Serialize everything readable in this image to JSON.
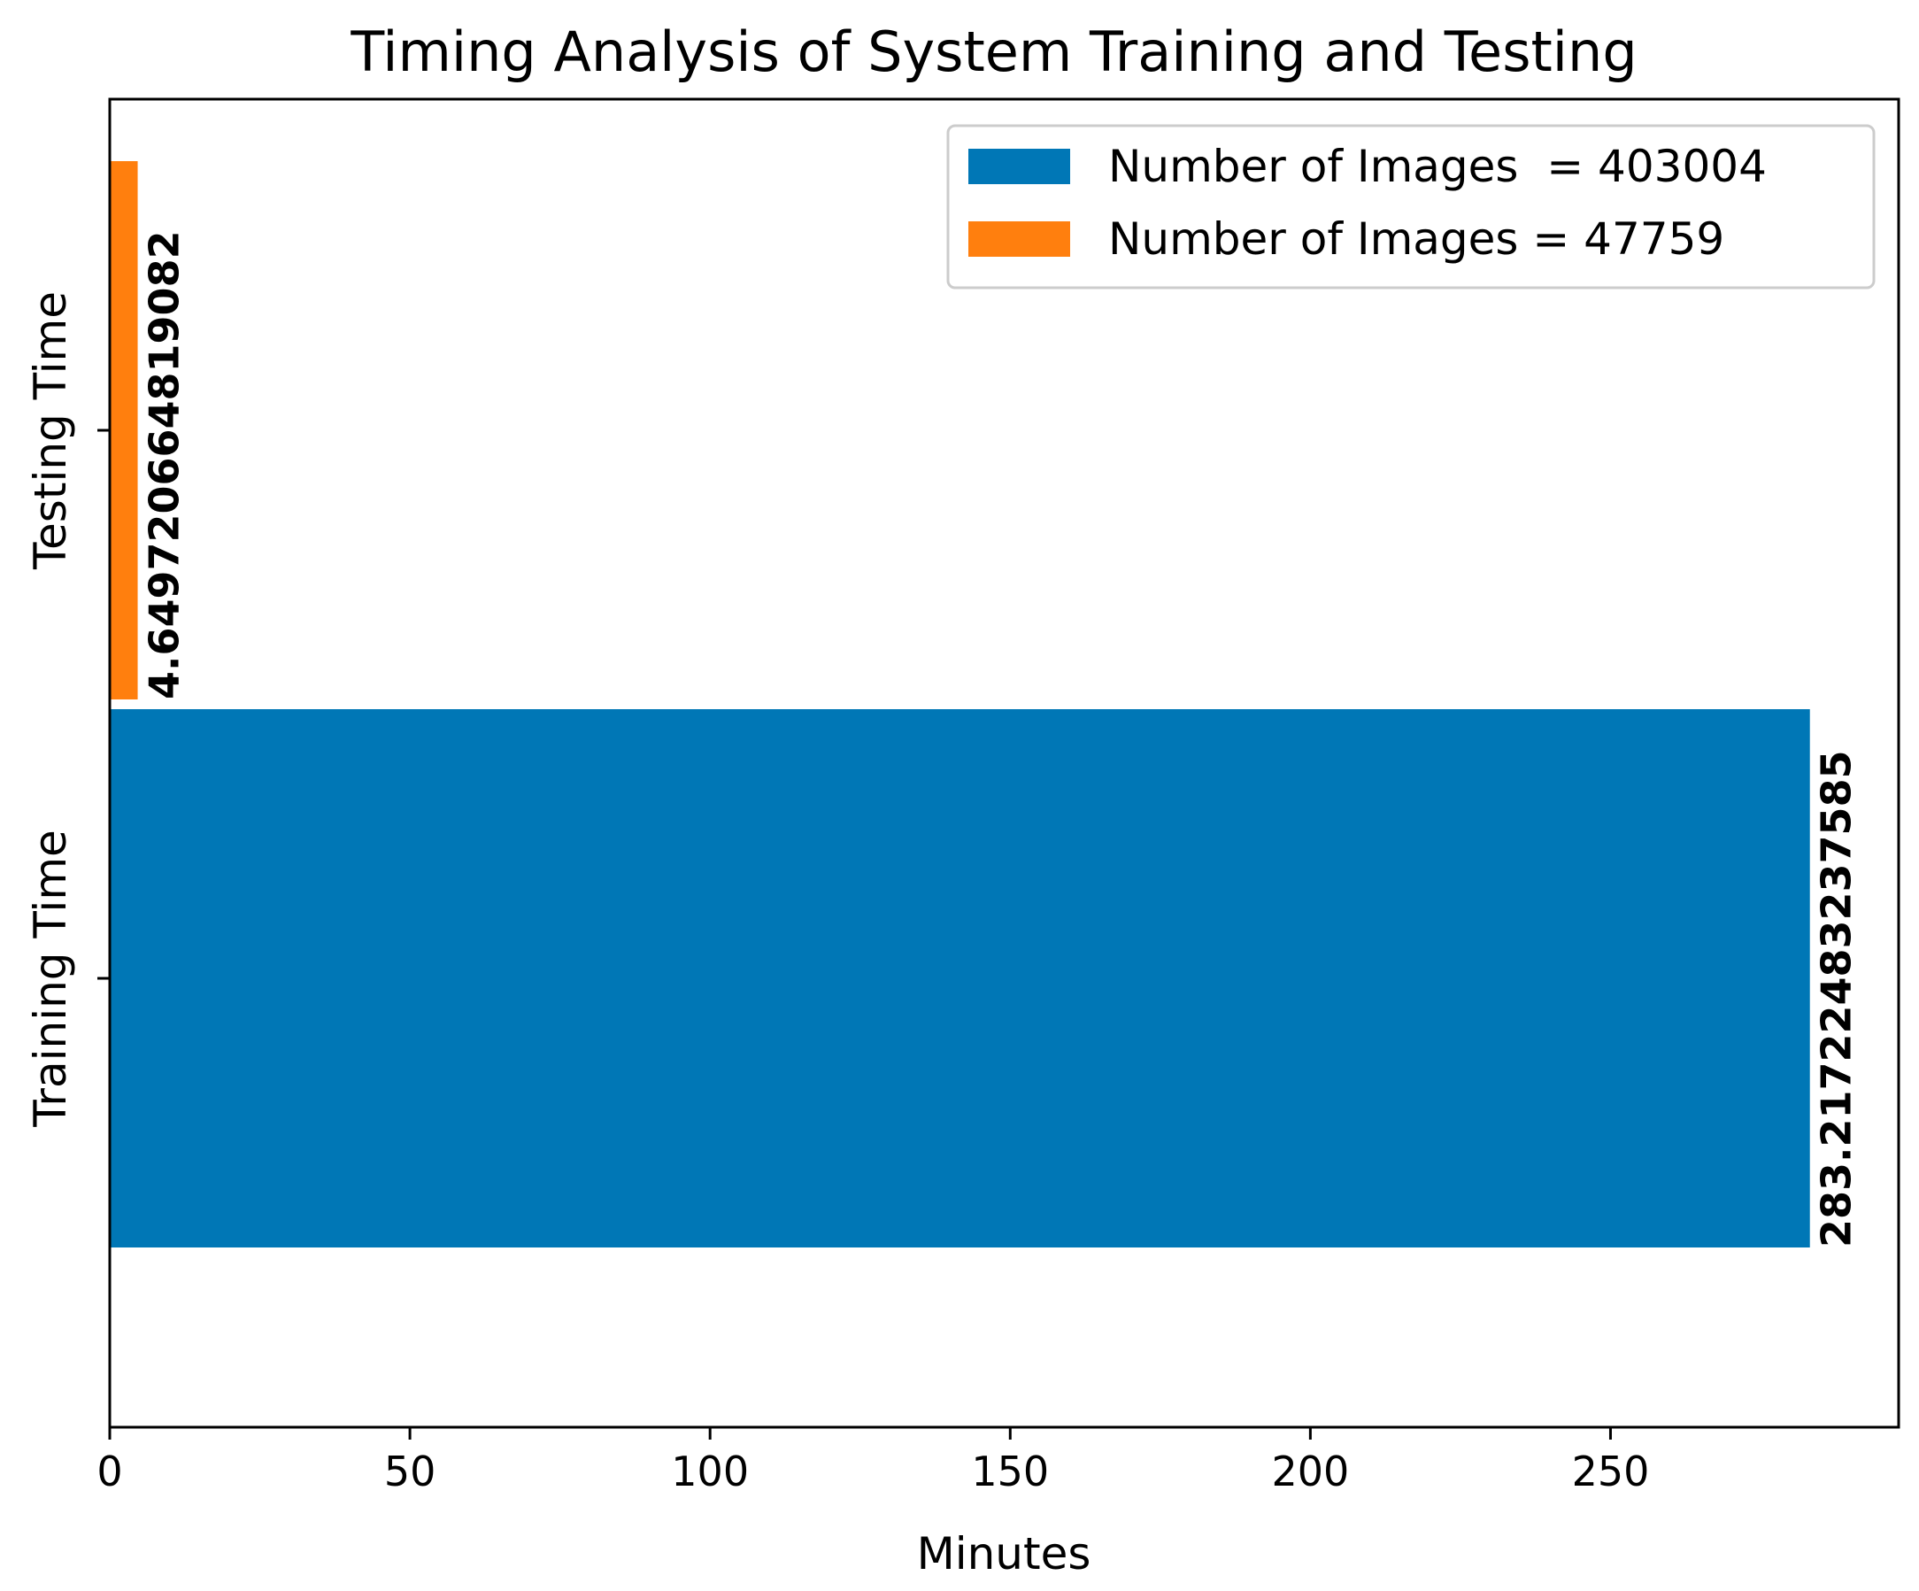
{
  "chart_data": {
    "type": "bar",
    "orientation": "horizontal",
    "title": "Timing Analysis of System Training and Testing",
    "xlabel": "Minutes",
    "ylabel": "",
    "xlim": [
      0,
      298
    ],
    "xticks": [
      0,
      50,
      100,
      150,
      200,
      250
    ],
    "categories": [
      "Training Time",
      "Testing Time"
    ],
    "series": [
      {
        "name": "Number of Images  = 403004",
        "color": "#0077b6",
        "category": "Training Time",
        "value": 283.2172248323758,
        "label": "283.2172248323758​5"
      },
      {
        "name": "Number of Images = 47759",
        "color": "#ff7f0e",
        "category": "Testing Time",
        "value": 4.649720664819082,
        "label": "4.649720664819082"
      }
    ],
    "grid": false,
    "legend_position": "top-right"
  }
}
